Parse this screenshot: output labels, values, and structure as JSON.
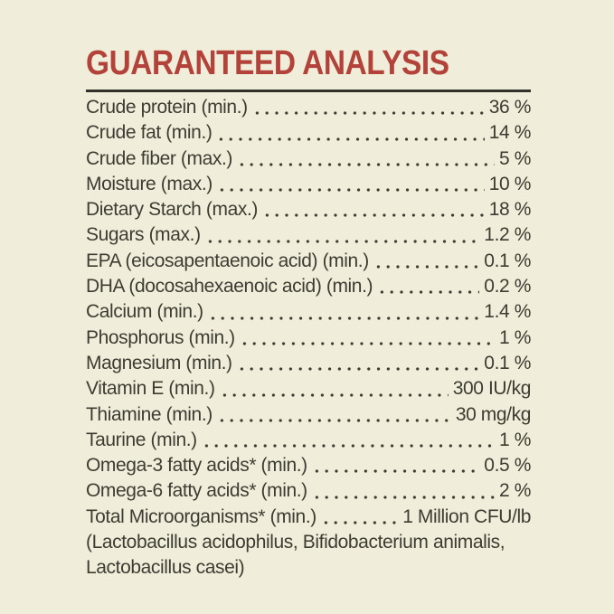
{
  "title": "GUARANTEED ANALYSIS",
  "colors": {
    "background": "#f0eeda",
    "title_accent": "#b2423a",
    "text": "#3e3c32",
    "rule": "#32302a"
  },
  "analysis": {
    "rows": [
      {
        "label": "Crude protein (min.)",
        "value": "36 %"
      },
      {
        "label": "Crude fat (min.)",
        "value": "14 %"
      },
      {
        "label": "Crude fiber (max.)",
        "value": "5 %"
      },
      {
        "label": "Moisture (max.)",
        "value": "10 %"
      },
      {
        "label": "Dietary Starch (max.)",
        "value": "18 %"
      },
      {
        "label": "Sugars (max.)",
        "value": "1.2 %"
      },
      {
        "label": "EPA (eicosapentaenoic acid) (min.)",
        "value": "0.1 %"
      },
      {
        "label": "DHA (docosahexaenoic acid) (min.)",
        "value": "0.2 %"
      },
      {
        "label": "Calcium (min.)",
        "value": "1.4 %"
      },
      {
        "label": "Phosphorus (min.)",
        "value": "1 %"
      },
      {
        "label": "Magnesium (min.)",
        "value": "0.1 %"
      },
      {
        "label": "Vitamin E (min.)",
        "value": "300 IU/kg"
      },
      {
        "label": "Thiamine (min.)",
        "value": "30 mg/kg"
      },
      {
        "label": "Taurine (min.)",
        "value": "1 %"
      },
      {
        "label": "Omega-3 fatty acids* (min.)",
        "value": "0.5 %"
      },
      {
        "label": "Omega-6 fatty acids* (min.)",
        "value": "2 %"
      },
      {
        "label": "Total Microorganisms* (min.)",
        "value": "1 Million CFU/lb"
      }
    ],
    "footnote_lines": [
      "(Lactobacillus acidophilus, Bifidobacterium animalis,",
      "Lactobacillus casei)"
    ]
  }
}
